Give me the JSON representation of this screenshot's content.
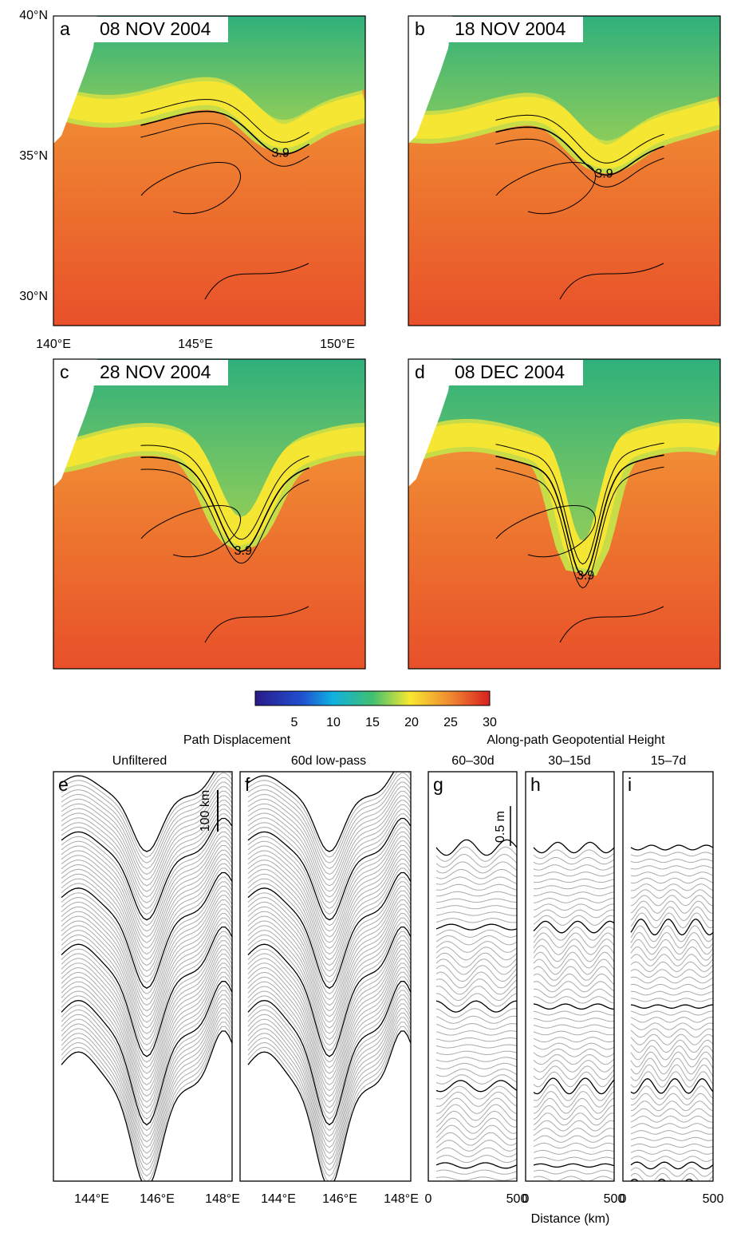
{
  "maps": [
    {
      "label": "a",
      "date": "08 NOV 2004",
      "contour_label": "3.9"
    },
    {
      "label": "b",
      "date": "18 NOV 2004",
      "contour_label": "3.9"
    },
    {
      "label": "c",
      "date": "28 NOV 2004",
      "contour_label": "3.9"
    },
    {
      "label": "d",
      "date": "08 DEC 2004",
      "contour_label": "3.9"
    }
  ],
  "map_axes": {
    "lat_labels": [
      "40°N",
      "35°N",
      "30°N"
    ],
    "lon_labels": [
      "140°E",
      "145°E",
      "150°E"
    ]
  },
  "colorbar": {
    "ticks": [
      5,
      10,
      15,
      20,
      25,
      30
    ]
  },
  "displacement": {
    "title": "Path Displacement",
    "panels": [
      {
        "label": "e",
        "subtitle": "Unfiltered",
        "scale": "100 km",
        "xticks": [
          "144°E",
          "146°E",
          "148°E"
        ]
      },
      {
        "label": "f",
        "subtitle": "60d low-pass",
        "xticks": [
          "144°E",
          "146°E",
          "148°E"
        ]
      }
    ]
  },
  "height": {
    "title": "Along-path Geopotential Height",
    "xlabel": "Distance (km)",
    "panels": [
      {
        "label": "g",
        "subtitle": "60–30d",
        "scale": "0.5 m",
        "xticks": [
          0,
          500
        ]
      },
      {
        "label": "h",
        "subtitle": "30–15d",
        "xticks": [
          0,
          500
        ]
      },
      {
        "label": "i",
        "subtitle": "15–7d",
        "xticks": [
          0,
          500
        ]
      }
    ]
  }
}
